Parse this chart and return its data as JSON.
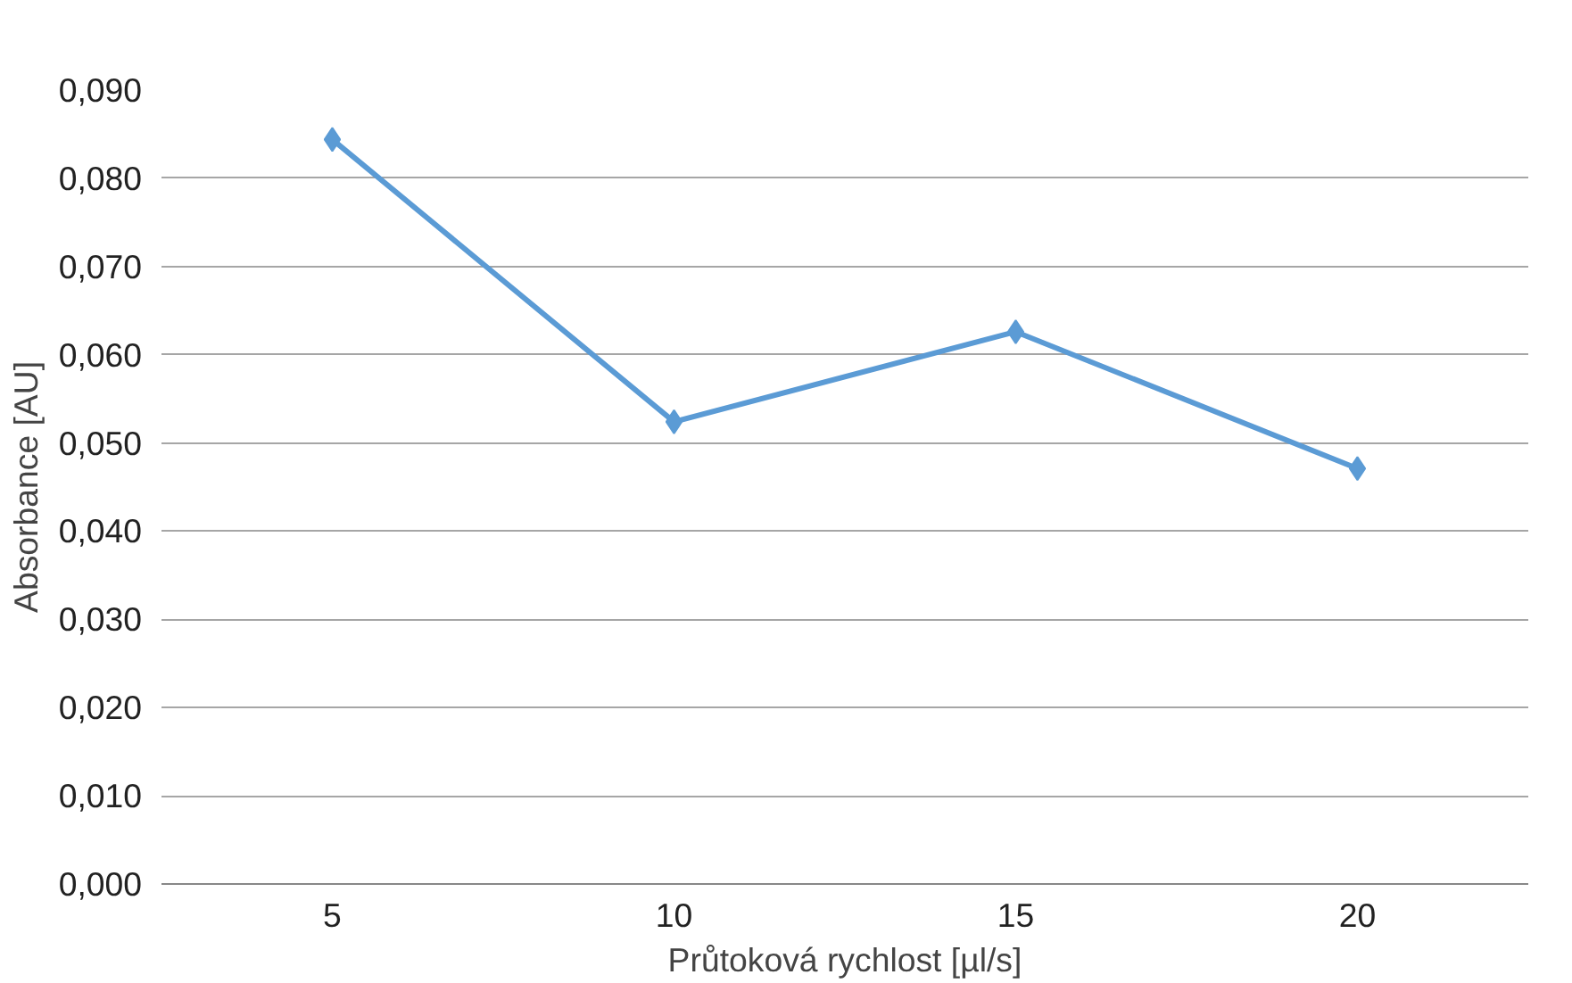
{
  "chart_data": {
    "type": "line",
    "xlabel": "Průtoková rychlost [µl/s]",
    "ylabel": "Absorbance [AU]",
    "categories": [
      "5",
      "10",
      "15",
      "20"
    ],
    "series": [
      {
        "color": "#5b9bd5",
        "values": [
          0.0844,
          0.0524,
          0.0626,
          0.0471
        ]
      }
    ],
    "ylim": [
      0,
      0.09
    ],
    "yticks": [
      {
        "value": 0,
        "label": "0,000"
      },
      {
        "value": 0.01,
        "label": "0,010"
      },
      {
        "value": 0.02,
        "label": "0,020"
      },
      {
        "value": 0.03,
        "label": "0,030"
      },
      {
        "value": 0.04,
        "label": "0,040"
      },
      {
        "value": 0.05,
        "label": "0,050"
      },
      {
        "value": 0.06,
        "label": "0,060"
      },
      {
        "value": 0.07,
        "label": "0,070"
      },
      {
        "value": 0.08,
        "label": "0,080"
      },
      {
        "value": 0.09,
        "label": "0,090"
      }
    ],
    "grid": "y",
    "marker": "diamond",
    "line_style": "solid"
  }
}
